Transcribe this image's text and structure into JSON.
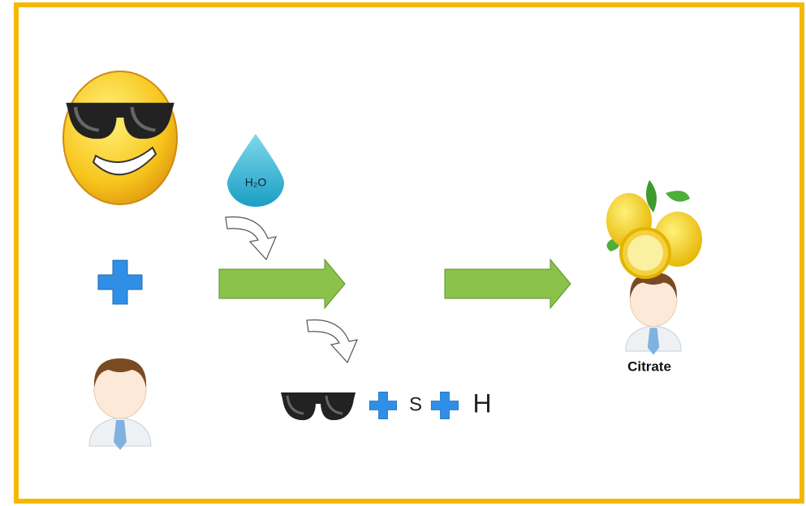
{
  "water_label": "H₂O",
  "byproducts": [
    "S",
    "H"
  ],
  "product_label": "Citrate"
}
